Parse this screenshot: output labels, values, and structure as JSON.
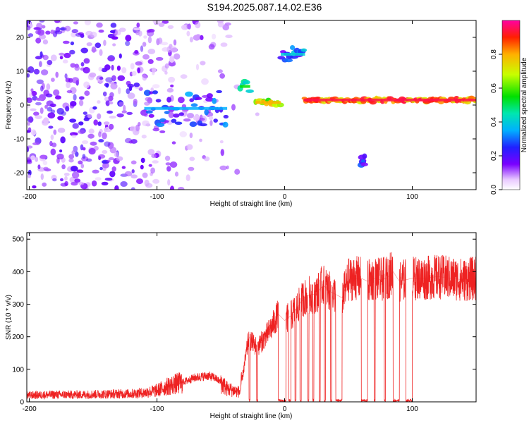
{
  "title": "S194.2025.087.14.02.E36",
  "colors": {
    "snr_line": "#ee2222",
    "frame": "#000000"
  },
  "chart_data": [
    {
      "type": "heatmap",
      "xlabel": "Height of straight line (km)",
      "ylabel": "Frequency (Hz)",
      "xlim": [
        -202,
        150
      ],
      "ylim": [
        -25,
        25
      ],
      "xticks": [
        -200,
        -100,
        0,
        100
      ],
      "xtick_labels": [
        "-200",
        "-100",
        "0",
        "100"
      ],
      "yticks": [
        -20,
        -10,
        0,
        10,
        20
      ],
      "ytick_labels": [
        "-20",
        "-10",
        "0",
        "10",
        "20"
      ],
      "colorbar": {
        "label": "Normalized spectral amplitude",
        "range": [
          0,
          1
        ],
        "ticks": [
          0.0,
          0.2,
          0.4,
          0.6,
          0.8
        ],
        "tick_labels": [
          "0.0",
          "0.2",
          "0.4",
          "0.6",
          "0.8"
        ],
        "colormap": "rainbow"
      },
      "features": [
        {
          "x": [
            -110,
            -45
          ],
          "freq": [
            -6,
            4
          ],
          "amplitude": 0.35
        },
        {
          "x": [
            -35,
            -27
          ],
          "freq": [
            4,
            7
          ],
          "amplitude": 0.55
        },
        {
          "x": [
            -23,
            -3
          ],
          "freq": [
            0,
            1.5
          ],
          "amplitude": 0.8
        },
        {
          "x": [
            -3,
            16
          ],
          "freq": [
            13,
            17
          ],
          "amplitude": 0.4
        },
        {
          "x": [
            15,
            150
          ],
          "freq": [
            1,
            2
          ],
          "amplitude": 0.95
        },
        {
          "x": [
            60,
            63
          ],
          "freq": [
            -18,
            -15
          ],
          "amplitude": 0.3
        }
      ]
    },
    {
      "type": "line",
      "xlabel": "Height of straight line (km)",
      "ylabel": "SNR (10 * v/v)",
      "xlim": [
        -202,
        150
      ],
      "ylim": [
        0,
        520
      ],
      "xticks": [
        -200,
        -100,
        0,
        100
      ],
      "xtick_labels": [
        "-200",
        "-100",
        "0",
        "100"
      ],
      "yticks": [
        0,
        100,
        200,
        300,
        400,
        500
      ],
      "ytick_labels": [
        "0",
        "100",
        "200",
        "300",
        "400",
        "500"
      ],
      "series": [
        {
          "x": [
            -202,
            -180,
            -160,
            -140,
            -120,
            -110,
            -100,
            -90,
            -80,
            -70,
            -60,
            -55,
            -50,
            -45,
            -40,
            -35,
            -30,
            -28,
            -25,
            -22,
            -20,
            -15,
            -10,
            -5,
            0,
            5,
            10,
            15,
            20,
            25,
            30,
            35,
            40,
            45,
            50,
            55,
            60,
            65,
            70,
            75,
            80,
            85,
            90,
            95,
            100,
            110,
            120,
            130,
            140,
            150
          ],
          "y": [
            20,
            22,
            22,
            24,
            25,
            28,
            35,
            50,
            60,
            75,
            80,
            75,
            60,
            40,
            35,
            30,
            150,
            200,
            180,
            170,
            175,
            200,
            230,
            270,
            250,
            265,
            290,
            320,
            330,
            330,
            360,
            340,
            330,
            320,
            375,
            380,
            380,
            370,
            380,
            375,
            380,
            400,
            370,
            375,
            380,
            380,
            385,
            380,
            375,
            380
          ]
        }
      ],
      "dropouts": [
        [
          -28,
          -27
        ],
        [
          -22,
          -21
        ],
        [
          -5,
          1
        ],
        [
          3,
          5
        ],
        [
          8,
          9
        ],
        [
          12,
          13
        ],
        [
          18,
          19
        ],
        [
          22,
          23
        ],
        [
          27,
          28
        ],
        [
          31,
          32
        ],
        [
          36,
          37
        ],
        [
          40,
          45
        ],
        [
          60,
          65
        ],
        [
          70,
          71
        ],
        [
          78,
          79
        ],
        [
          85,
          90
        ],
        [
          95,
          100
        ]
      ]
    }
  ]
}
